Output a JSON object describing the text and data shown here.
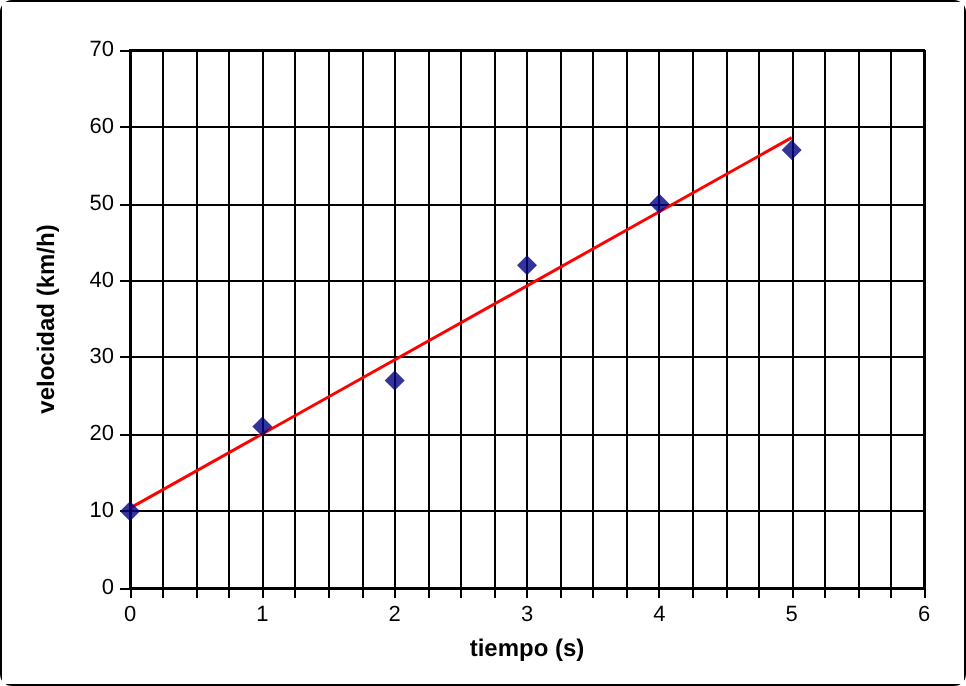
{
  "chart_data": {
    "type": "scatter",
    "xlabel": "tiempo (s)",
    "ylabel": "velocidad (km/h)",
    "xlim": [
      0,
      6
    ],
    "ylim": [
      0,
      70
    ],
    "xticks": [
      0,
      {
        "value": 0.25,
        "label": null
      },
      {
        "value": 0.5,
        "label": null
      },
      {
        "value": 0.75,
        "label": null
      },
      1,
      {
        "value": 1.25,
        "label": null
      },
      {
        "value": 1.5,
        "label": null
      },
      {
        "value": 1.75,
        "label": null
      },
      2,
      {
        "value": 2.25,
        "label": null
      },
      {
        "value": 2.5,
        "label": null
      },
      {
        "value": 2.75,
        "label": null
      },
      3,
      {
        "value": 3.25,
        "label": null
      },
      {
        "value": 3.5,
        "label": null
      },
      {
        "value": 3.75,
        "label": null
      },
      4,
      {
        "value": 4.25,
        "label": null
      },
      {
        "value": 4.5,
        "label": null
      },
      {
        "value": 4.75,
        "label": null
      },
      5,
      {
        "value": 5.25,
        "label": null
      },
      {
        "value": 5.5,
        "label": null
      },
      {
        "value": 5.75,
        "label": null
      },
      6
    ],
    "yticks": [
      0,
      10,
      20,
      30,
      40,
      50,
      60,
      70
    ],
    "grid": true,
    "marker": "diamond",
    "series": [
      {
        "color": "#000080",
        "x": [
          0,
          1,
          2,
          3,
          4,
          5
        ],
        "values": [
          10,
          21,
          27,
          42,
          50,
          57
        ]
      },
      {
        "type": "line",
        "color": "#ff0000",
        "marker": "none",
        "line_style": "solid",
        "x": [
          0,
          5
        ],
        "values": [
          10.4,
          58.6
        ]
      }
    ]
  }
}
